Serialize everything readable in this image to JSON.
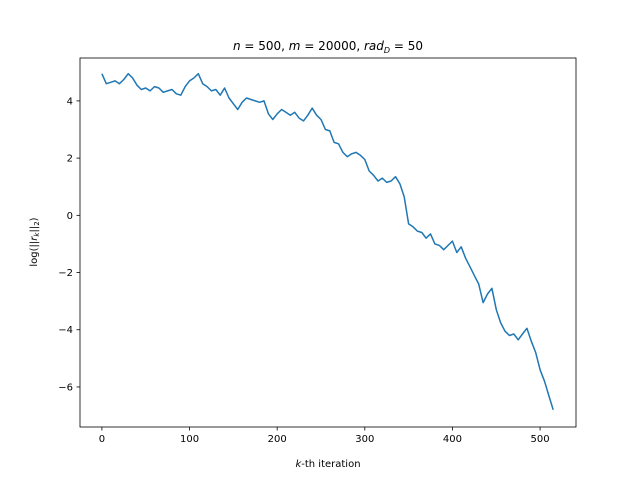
{
  "chart_data": {
    "type": "line",
    "title_parts": {
      "t1": "n",
      "t2": " = 500, ",
      "t3": "m",
      "t4": " = 20000, ",
      "t5": "rad",
      "t6": "D",
      "t7": " = 50"
    },
    "xlabel_parts": {
      "x1": "k",
      "x2": "-th iteration"
    },
    "ylabel_parts": {
      "y1": "log(||",
      "y2": "r",
      "y3": "k",
      "y4": "||",
      "y5": "2",
      "y6": ")"
    },
    "xlim": [
      -25,
      541
    ],
    "ylim": [
      -7.4,
      5.5
    ],
    "xticks": [
      0,
      100,
      200,
      300,
      400,
      500
    ],
    "yticks": [
      -6,
      -4,
      -2,
      0,
      2,
      4
    ],
    "ytick_labels": [
      "−6",
      "−4",
      "−2",
      "0",
      "2",
      "4"
    ],
    "line_color": "#1f77b4",
    "x": [
      0,
      5,
      10,
      15,
      20,
      25,
      30,
      35,
      40,
      45,
      50,
      55,
      60,
      65,
      70,
      75,
      80,
      85,
      90,
      95,
      100,
      105,
      110,
      115,
      120,
      125,
      130,
      135,
      140,
      145,
      150,
      155,
      160,
      165,
      170,
      175,
      180,
      185,
      190,
      195,
      200,
      205,
      210,
      215,
      220,
      225,
      230,
      235,
      240,
      245,
      250,
      255,
      260,
      265,
      270,
      275,
      280,
      285,
      290,
      295,
      300,
      305,
      310,
      315,
      320,
      325,
      330,
      335,
      340,
      345,
      350,
      355,
      360,
      365,
      370,
      375,
      380,
      385,
      390,
      395,
      400,
      405,
      410,
      415,
      420,
      425,
      430,
      435,
      440,
      445,
      450,
      455,
      460,
      465,
      470,
      475,
      480,
      485,
      490,
      495,
      500,
      505,
      510,
      515
    ],
    "y": [
      4.95,
      4.6,
      4.65,
      4.7,
      4.6,
      4.75,
      4.95,
      4.8,
      4.55,
      4.4,
      4.45,
      4.35,
      4.5,
      4.45,
      4.3,
      4.35,
      4.4,
      4.25,
      4.2,
      4.5,
      4.7,
      4.8,
      4.95,
      4.6,
      4.5,
      4.35,
      4.4,
      4.2,
      4.45,
      4.1,
      3.9,
      3.7,
      3.95,
      4.1,
      4.05,
      4.0,
      3.95,
      4.0,
      3.55,
      3.35,
      3.55,
      3.7,
      3.6,
      3.5,
      3.6,
      3.4,
      3.3,
      3.5,
      3.75,
      3.5,
      3.35,
      3.0,
      2.95,
      2.55,
      2.5,
      2.2,
      2.05,
      2.15,
      2.2,
      2.1,
      1.95,
      1.55,
      1.4,
      1.2,
      1.3,
      1.15,
      1.2,
      1.35,
      1.1,
      0.65,
      -0.3,
      -0.4,
      -0.55,
      -0.6,
      -0.8,
      -0.65,
      -1.0,
      -1.05,
      -1.2,
      -1.05,
      -0.9,
      -1.3,
      -1.1,
      -1.5,
      -1.8,
      -2.1,
      -2.4,
      -3.05,
      -2.75,
      -2.55,
      -3.3,
      -3.75,
      -4.05,
      -4.2,
      -4.15,
      -4.35,
      -4.15,
      -3.95,
      -4.4,
      -4.8,
      -5.4,
      -5.8,
      -6.3,
      -6.8
    ]
  }
}
